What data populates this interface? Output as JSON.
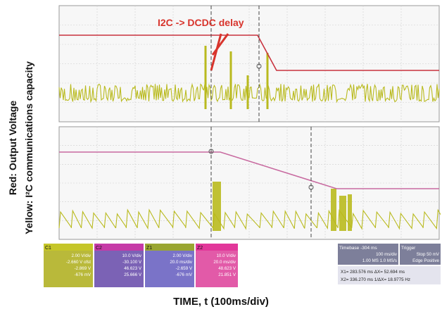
{
  "chart_data": [
    {
      "type": "line",
      "panel": "top",
      "annotation": "I2C -> DCDC delay",
      "series": [
        {
          "role": "output-voltage",
          "color": "#c8323e",
          "points": [
            {
              "t": 0,
              "v": 3.0
            },
            {
              "t": 261,
              "v": 3.0
            },
            {
              "t": 286,
              "v": 1.5
            },
            {
              "t": 500,
              "v": 1.5
            }
          ]
        },
        {
          "role": "i2c-activity",
          "color": "#b9ba1e",
          "kind": "noise"
        }
      ]
    },
    {
      "type": "line",
      "panel": "bottom",
      "series": [
        {
          "role": "output-voltage",
          "color": "#c86aa0",
          "points": [
            {
              "t": 0,
              "v": 3.0
            },
            {
              "t": 212,
              "v": 3.0
            },
            {
              "t": 365,
              "v": 1.5
            },
            {
              "t": 500,
              "v": 1.5
            }
          ]
        },
        {
          "role": "i2c-activity",
          "color": "#b9ba1e",
          "kind": "sawtooth"
        }
      ]
    }
  ],
  "labels": {
    "y_red": "Red: Output Voltage",
    "y_yellow": "Yellow: I²C communications capacity",
    "x": "TIME, t (100ms/div)",
    "annotation": "I2C -> DCDC delay"
  },
  "info": {
    "ch1": {
      "tag": "C1",
      "lines": [
        "2.00 V/div",
        "-2.660 V ofst",
        "-2.869 V",
        "-676 mV"
      ]
    },
    "ch2": {
      "tag": "C2",
      "lines": [
        "10.0 V/div",
        "-30.100 V",
        "46.623 V",
        "25.666 V"
      ]
    },
    "ch3": {
      "tag": "Z1",
      "lines": [
        "2.00 V/div",
        "20.0 ms/div",
        "-2.659 V",
        "-676 mV"
      ]
    },
    "ch4": {
      "tag": "Z2",
      "lines": [
        "10.0 V/div",
        "20.0 ms/div",
        "48.623 V",
        "21.851 V"
      ]
    },
    "timebase": {
      "head": "Timebase -304 ms",
      "lines": [
        "100 ms/div",
        "1.00 MS   1.0 MS/s"
      ]
    },
    "trigger": {
      "head": "Trigger",
      "lines": [
        "Stop   50 mV",
        "Edge   Positive"
      ]
    },
    "cursor1": "X1= 283.576 ms   ΔX= 52.694 ms",
    "cursor2": "X2= 336.270 ms   1/ΔX= 18.9775 Hz"
  }
}
